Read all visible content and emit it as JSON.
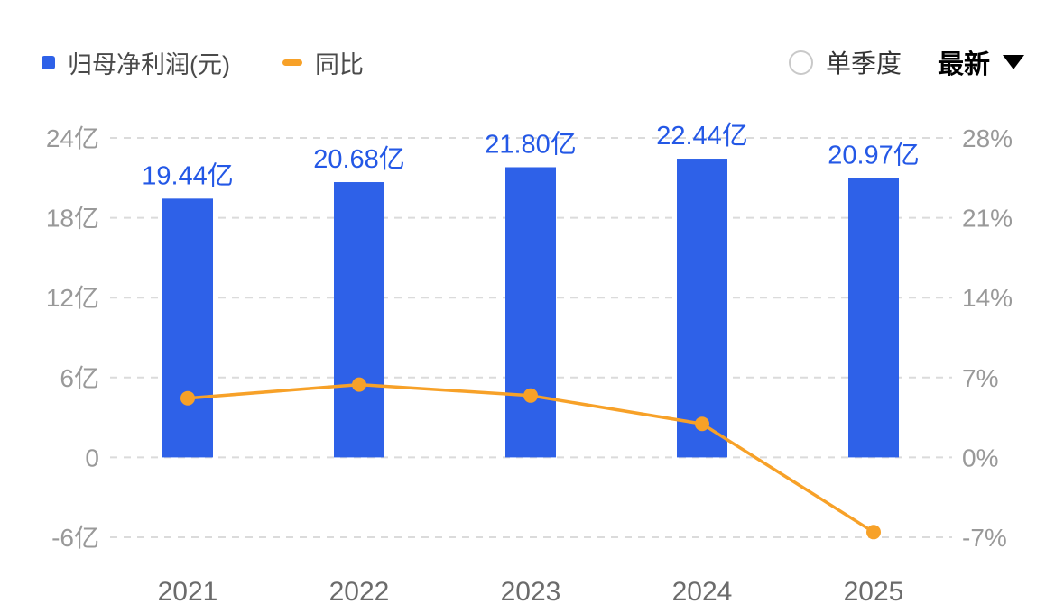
{
  "legend": {
    "net_profit_label": "归母净利润(元)",
    "yoy_label": "同比"
  },
  "controls": {
    "single_quarter_label": "单季度",
    "latest_label": "最新"
  },
  "colors": {
    "bar": "#2E61E8",
    "bar_label": "#2458E6",
    "line": "#F7A128",
    "axis_text": "#999999",
    "x_label": "#6B6B6B",
    "grid": "#DBDBDB"
  },
  "chart_data": {
    "type": "bar",
    "subtype": "bar+line combo",
    "categories": [
      "2021",
      "2022",
      "2023",
      "2024",
      "2025"
    ],
    "series": [
      {
        "name": "归母净利润(元)",
        "type": "bar",
        "axis": "left",
        "unit": "亿",
        "values": [
          19.44,
          20.68,
          21.8,
          22.44,
          20.97
        ],
        "labels": [
          "19.44亿",
          "20.68亿",
          "21.80亿",
          "22.44亿",
          "20.97亿"
        ]
      },
      {
        "name": "同比",
        "type": "line",
        "axis": "right",
        "unit": "%",
        "values": [
          5.19,
          6.38,
          5.42,
          2.94,
          -6.55
        ]
      }
    ],
    "left_axis": {
      "ticks": [
        "24亿",
        "18亿",
        "12亿",
        "6亿",
        "0",
        "-6亿"
      ],
      "values": [
        24,
        18,
        12,
        6,
        0,
        -6
      ],
      "range": [
        -6,
        24
      ]
    },
    "right_axis": {
      "ticks": [
        "28%",
        "21%",
        "14%",
        "7%",
        "0%",
        "-7%"
      ],
      "values": [
        28,
        21,
        14,
        7,
        0,
        -7
      ],
      "range": [
        -7,
        28
      ]
    },
    "grid": "dashed horizontal",
    "legend_position": "top-left"
  }
}
